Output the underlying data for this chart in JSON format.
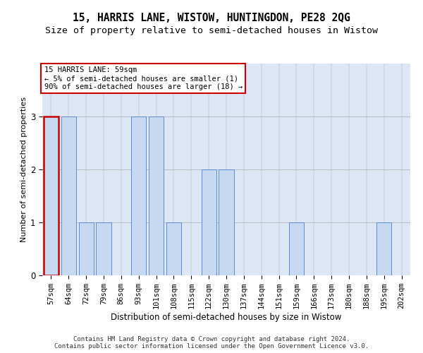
{
  "title": "15, HARRIS LANE, WISTOW, HUNTINGDON, PE28 2QG",
  "subtitle": "Size of property relative to semi-detached houses in Wistow",
  "xlabel": "Distribution of semi-detached houses by size in Wistow",
  "ylabel": "Number of semi-detached properties",
  "categories": [
    "57sqm",
    "64sqm",
    "72sqm",
    "79sqm",
    "86sqm",
    "93sqm",
    "101sqm",
    "108sqm",
    "115sqm",
    "122sqm",
    "130sqm",
    "137sqm",
    "144sqm",
    "151sqm",
    "159sqm",
    "166sqm",
    "173sqm",
    "180sqm",
    "188sqm",
    "195sqm",
    "202sqm"
  ],
  "values": [
    3,
    3,
    1,
    1,
    0,
    3,
    3,
    1,
    0,
    2,
    2,
    0,
    0,
    0,
    1,
    0,
    0,
    0,
    0,
    1,
    0
  ],
  "highlight_index": 0,
  "bar_color": "#c6d9f0",
  "bar_edge_color": "#5b8bd0",
  "highlight_bar_edge_color": "#cc0000",
  "annotation_text": "15 HARRIS LANE: 59sqm\n← 5% of semi-detached houses are smaller (1)\n90% of semi-detached houses are larger (18) →",
  "annotation_box_color": "#ffffff",
  "annotation_box_edge_color": "#cc0000",
  "footer_line1": "Contains HM Land Registry data © Crown copyright and database right 2024.",
  "footer_line2": "Contains public sector information licensed under the Open Government Licence v3.0.",
  "ylim": [
    0,
    4
  ],
  "yticks": [
    0,
    1,
    2,
    3
  ],
  "bg_color": "#dce6f5",
  "title_fontsize": 10.5,
  "subtitle_fontsize": 9.5,
  "axis_label_fontsize": 8,
  "tick_fontsize": 7.5,
  "footer_fontsize": 6.5
}
